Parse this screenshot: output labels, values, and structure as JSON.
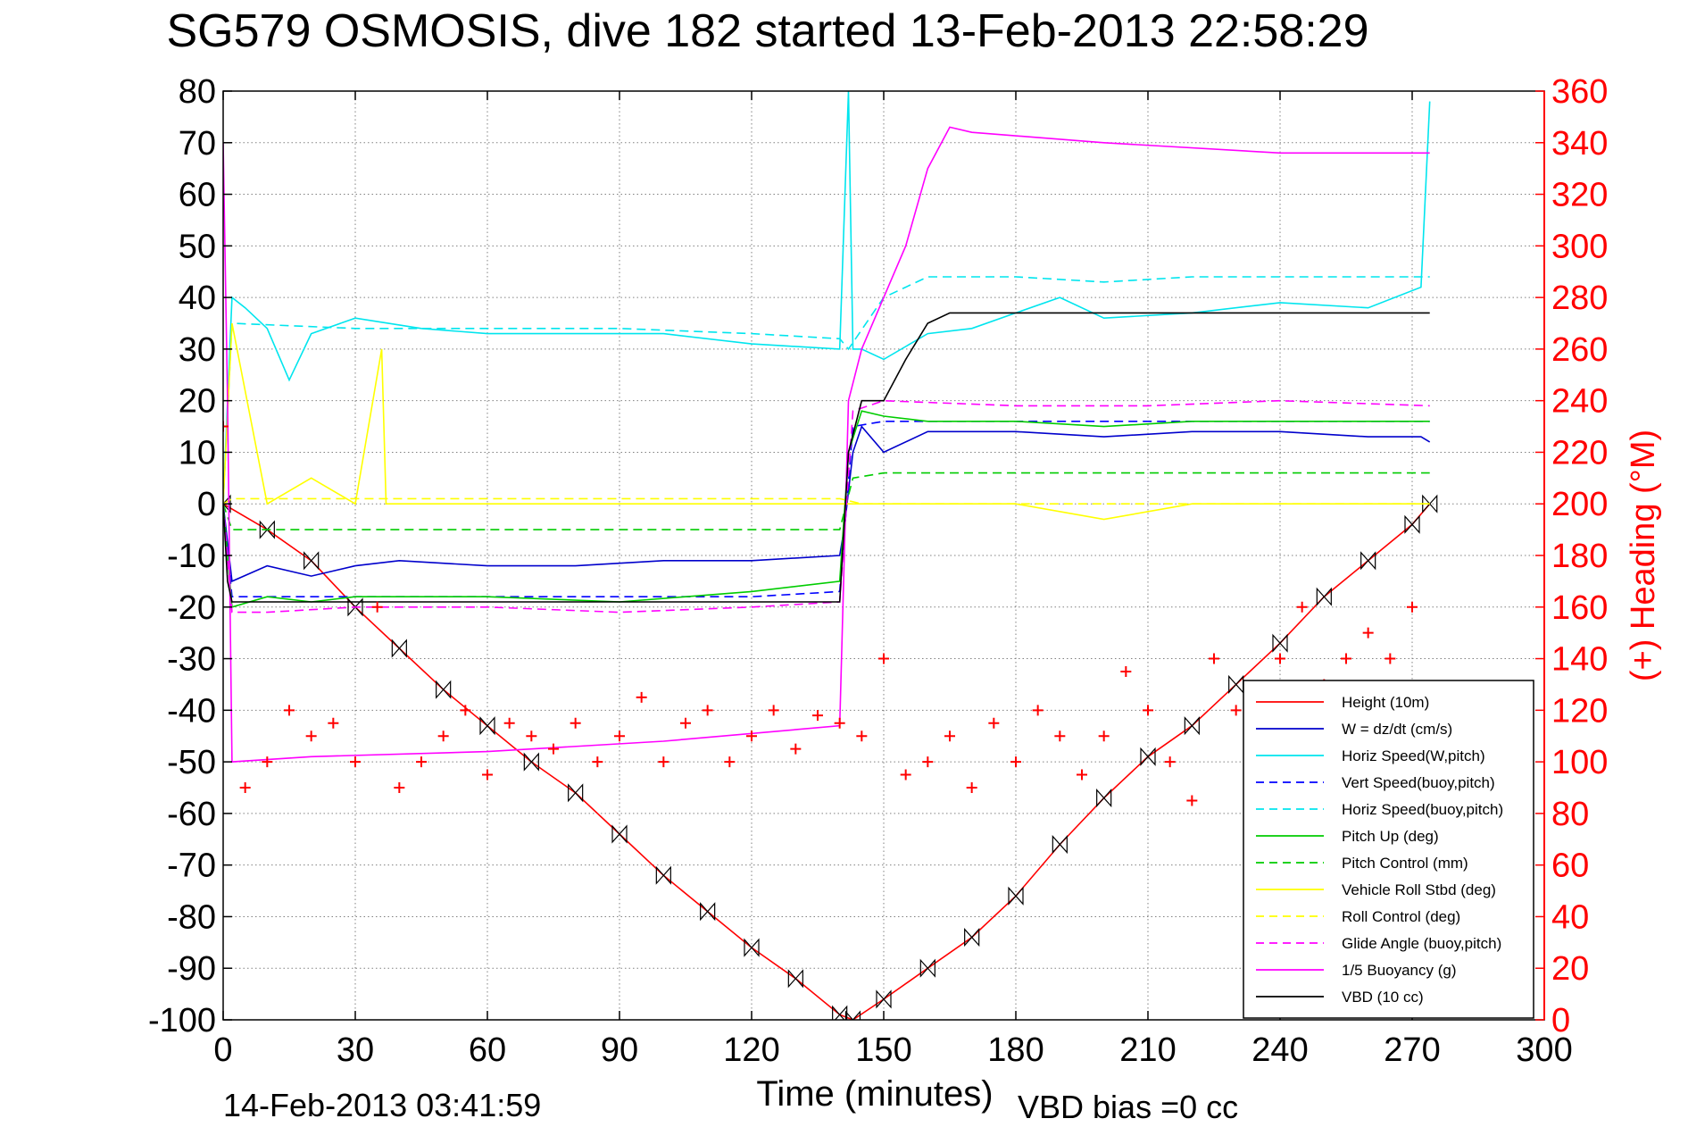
{
  "chart_data": {
    "type": "line",
    "title": "SG579 OSMOSIS, dive 182 started 13-Feb-2013 22:58:29",
    "xlabel": "Time (minutes)",
    "ylabel_right": "(+) Heading (°M)",
    "footer_left": "14-Feb-2013 03:41:59",
    "footer_right": "VBD bias =0 cc",
    "xlim": [
      0,
      300
    ],
    "ylim": [
      -100,
      80
    ],
    "ylim_right": [
      0,
      360
    ],
    "xticks": [
      0,
      30,
      60,
      90,
      120,
      150,
      180,
      210,
      240,
      270,
      300
    ],
    "yticks": [
      -100,
      -90,
      -80,
      -70,
      -60,
      -50,
      -40,
      -30,
      -20,
      -10,
      0,
      10,
      20,
      30,
      40,
      50,
      60,
      70,
      80
    ],
    "yticks_right": [
      0,
      20,
      40,
      60,
      80,
      100,
      120,
      140,
      160,
      180,
      200,
      220,
      240,
      260,
      280,
      300,
      320,
      340,
      360
    ],
    "grid": true,
    "legend_position": "bottom-right",
    "colors": {
      "left_axis": "#000000",
      "right_axis": "#ff0000"
    },
    "series": [
      {
        "name": "Height (10m)",
        "color": "#ff0000",
        "style": "solid",
        "x": [
          0,
          10,
          20,
          30,
          40,
          50,
          60,
          70,
          80,
          90,
          100,
          110,
          120,
          130,
          140,
          143,
          150,
          160,
          170,
          180,
          190,
          200,
          210,
          220,
          230,
          240,
          250,
          260,
          270,
          274
        ],
        "y": [
          0,
          -5,
          -11,
          -20,
          -28,
          -36,
          -43,
          -50,
          -56,
          -64,
          -72,
          -79,
          -86,
          -92,
          -99,
          -100,
          -96,
          -90,
          -84,
          -76,
          -66,
          -57,
          -49,
          -43,
          -35,
          -27,
          -18,
          -11,
          -4,
          0
        ]
      },
      {
        "name": "W = dz/dt (cm/s)",
        "color": "#0000cc",
        "style": "solid",
        "x": [
          0,
          2,
          10,
          20,
          30,
          40,
          60,
          80,
          100,
          120,
          140,
          141,
          143,
          145,
          150,
          160,
          180,
          200,
          220,
          240,
          260,
          272,
          274
        ],
        "y": [
          0,
          -15,
          -12,
          -14,
          -12,
          -11,
          -12,
          -12,
          -11,
          -11,
          -10,
          -5,
          10,
          15,
          10,
          14,
          14,
          13,
          14,
          14,
          13,
          13,
          12
        ]
      },
      {
        "name": "Horiz Speed(W,pitch)",
        "color": "#00e5ee",
        "style": "solid",
        "x": [
          0,
          2,
          5,
          10,
          15,
          20,
          30,
          45,
          60,
          80,
          100,
          120,
          140,
          142,
          143,
          145,
          150,
          160,
          170,
          180,
          190,
          200,
          220,
          240,
          260,
          272,
          274
        ],
        "y": [
          0,
          40,
          38,
          34,
          24,
          33,
          36,
          34,
          33,
          33,
          33,
          31,
          30,
          80,
          30,
          30,
          28,
          33,
          34,
          37,
          40,
          36,
          37,
          39,
          38,
          42,
          78
        ]
      },
      {
        "name": "Vert Speed(buoy,pitch)",
        "color": "#0000ff",
        "style": "dashed",
        "x": [
          0,
          2,
          30,
          60,
          90,
          120,
          140,
          143,
          150,
          200,
          250,
          274
        ],
        "y": [
          0,
          -18,
          -18,
          -18,
          -18,
          -18,
          -17,
          15,
          16,
          16,
          16,
          16
        ]
      },
      {
        "name": "Horiz Speed(buoy,pitch)",
        "color": "#00e5ee",
        "style": "dashed",
        "x": [
          0,
          2,
          30,
          60,
          90,
          120,
          140,
          142,
          150,
          160,
          180,
          200,
          220,
          240,
          260,
          274
        ],
        "y": [
          0,
          35,
          34,
          34,
          34,
          33,
          32,
          30,
          40,
          44,
          44,
          43,
          44,
          44,
          44,
          44
        ]
      },
      {
        "name": "Pitch Up (deg)",
        "color": "#00cc00",
        "style": "solid",
        "x": [
          0,
          2,
          10,
          20,
          30,
          60,
          90,
          120,
          140,
          142,
          145,
          150,
          160,
          180,
          200,
          220,
          240,
          260,
          274
        ],
        "y": [
          0,
          -20,
          -18,
          -19,
          -18,
          -18,
          -19,
          -17,
          -15,
          10,
          18,
          17,
          16,
          16,
          15,
          16,
          16,
          16,
          16
        ]
      },
      {
        "name": "Pitch Control (mm)",
        "color": "#00cc00",
        "style": "dashed",
        "x": [
          0,
          2,
          30,
          60,
          90,
          120,
          140,
          143,
          150,
          200,
          250,
          274
        ],
        "y": [
          0,
          -5,
          -5,
          -5,
          -5,
          -5,
          -5,
          5,
          6,
          6,
          6,
          6
        ]
      },
      {
        "name": "Vehicle Roll Stbd (deg)",
        "color": "#ffff00",
        "style": "solid",
        "x": [
          0,
          2,
          10,
          20,
          30,
          36,
          37,
          40,
          60,
          90,
          120,
          140,
          145,
          150,
          180,
          200,
          220,
          240,
          260,
          274
        ],
        "y": [
          0,
          35,
          0,
          5,
          0,
          30,
          0,
          0,
          0,
          0,
          0,
          0,
          0,
          0,
          0,
          -3,
          0,
          0,
          0,
          0
        ]
      },
      {
        "name": "Roll Control (deg)",
        "color": "#ffff00",
        "style": "dashed",
        "x": [
          0,
          2,
          30,
          60,
          90,
          120,
          140,
          145,
          150,
          180,
          210,
          240,
          274
        ],
        "y": [
          0,
          1,
          1,
          1,
          1,
          1,
          1,
          0,
          0,
          0,
          0,
          0,
          0
        ]
      },
      {
        "name": "Glide Angle (buoy,pitch)",
        "color": "#ff00ff",
        "style": "dashed",
        "x": [
          0,
          2,
          10,
          30,
          60,
          90,
          120,
          140,
          143,
          150,
          180,
          210,
          240,
          274
        ],
        "y": [
          0,
          -21,
          -21,
          -20,
          -20,
          -21,
          -20,
          -19,
          18,
          20,
          19,
          19,
          20,
          19
        ]
      },
      {
        "name": "1/5 Buoyancy (g)",
        "color": "#ff00ff",
        "style": "solid",
        "x": [
          0,
          1,
          2,
          20,
          60,
          100,
          140,
          142,
          145,
          150,
          155,
          160,
          165,
          170,
          200,
          240,
          270,
          274
        ],
        "y": [
          70,
          20,
          -50,
          -49,
          -48,
          -46,
          -43,
          20,
          30,
          40,
          50,
          65,
          73,
          72,
          70,
          68,
          68,
          68
        ]
      },
      {
        "name": "VBD (10 cc)",
        "color": "#000000",
        "style": "solid",
        "x": [
          0,
          1,
          2,
          20,
          60,
          100,
          140,
          142,
          145,
          150,
          155,
          160,
          165,
          180,
          220,
          274
        ],
        "y": [
          0,
          -15,
          -19,
          -19,
          -19,
          -19,
          -19,
          10,
          20,
          20,
          28,
          35,
          37,
          37,
          37,
          37
        ]
      },
      {
        "name": "Heading",
        "color": "#ff0000",
        "style": "markers",
        "axis": "right",
        "x": [
          0,
          5,
          10,
          15,
          20,
          25,
          30,
          35,
          40,
          45,
          50,
          55,
          60,
          65,
          70,
          75,
          80,
          85,
          90,
          95,
          100,
          105,
          110,
          115,
          120,
          125,
          130,
          135,
          140,
          145,
          150,
          155,
          160,
          165,
          170,
          175,
          180,
          185,
          190,
          195,
          200,
          205,
          210,
          215,
          220,
          225,
          230,
          235,
          240,
          245,
          250,
          255,
          260,
          265,
          270
        ],
        "y": [
          230,
          90,
          100,
          120,
          110,
          115,
          100,
          160,
          90,
          100,
          110,
          120,
          95,
          115,
          110,
          105,
          115,
          100,
          110,
          125,
          100,
          115,
          120,
          100,
          110,
          120,
          105,
          118,
          115,
          110,
          140,
          95,
          100,
          110,
          90,
          115,
          100,
          120,
          110,
          95,
          110,
          135,
          120,
          100,
          85,
          140,
          120,
          110,
          140,
          160,
          130,
          140,
          150,
          140,
          160
        ]
      }
    ]
  }
}
